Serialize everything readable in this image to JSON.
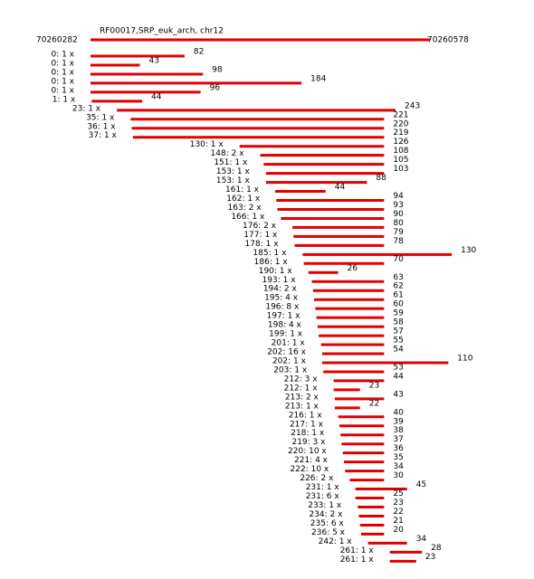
{
  "header": {
    "title": "RF00017,SRP_euk_arch, chr12",
    "start": 70260282,
    "end": 70260578
  },
  "reads": [
    {
      "label": "0: 1 x",
      "start": 0,
      "length": 82
    },
    {
      "label": "0: 1 x",
      "start": 0,
      "length": 43
    },
    {
      "label": "0: 1 x",
      "start": 0,
      "length": 98
    },
    {
      "label": "0: 1 x",
      "start": 0,
      "length": 184
    },
    {
      "label": "0: 1 x",
      "start": 0,
      "length": 96
    },
    {
      "label": "1: 1 x",
      "start": 1,
      "length": 44
    },
    {
      "label": "23: 1 x",
      "start": 23,
      "length": 243
    },
    {
      "label": "35: 1 x",
      "start": 35,
      "length": 221
    },
    {
      "label": "36: 1 x",
      "start": 36,
      "length": 220
    },
    {
      "label": "37: 1 x",
      "start": 37,
      "length": 219
    },
    {
      "label": "130: 1 x",
      "start": 130,
      "length": 126
    },
    {
      "label": "148: 2 x",
      "start": 148,
      "length": 108
    },
    {
      "label": "151: 1 x",
      "start": 151,
      "length": 105
    },
    {
      "label": "153: 1 x",
      "start": 153,
      "length": 103
    },
    {
      "label": "153: 1 x",
      "start": 153,
      "length": 88
    },
    {
      "label": "161: 1 x",
      "start": 161,
      "length": 44
    },
    {
      "label": "162: 1 x",
      "start": 162,
      "length": 94
    },
    {
      "label": "163: 2 x",
      "start": 163,
      "length": 93
    },
    {
      "label": "166: 1 x",
      "start": 166,
      "length": 90
    },
    {
      "label": "176: 2 x",
      "start": 176,
      "length": 80
    },
    {
      "label": "177: 1 x",
      "start": 177,
      "length": 79
    },
    {
      "label": "178: 1 x",
      "start": 178,
      "length": 78
    },
    {
      "label": "185: 1 x",
      "start": 185,
      "length": 130
    },
    {
      "label": "186: 1 x",
      "start": 186,
      "length": 70
    },
    {
      "label": "190: 1 x",
      "start": 190,
      "length": 26
    },
    {
      "label": "193: 1 x",
      "start": 193,
      "length": 63
    },
    {
      "label": "194: 2 x",
      "start": 194,
      "length": 62
    },
    {
      "label": "195: 4 x",
      "start": 195,
      "length": 61
    },
    {
      "label": "196: 8 x",
      "start": 196,
      "length": 60
    },
    {
      "label": "197: 1 x",
      "start": 197,
      "length": 59
    },
    {
      "label": "198: 4 x",
      "start": 198,
      "length": 58
    },
    {
      "label": "199: 1 x",
      "start": 199,
      "length": 57
    },
    {
      "label": "201: 1 x",
      "start": 201,
      "length": 55
    },
    {
      "label": "202: 16 x",
      "start": 202,
      "length": 54
    },
    {
      "label": "202: 1 x",
      "start": 202,
      "length": 110
    },
    {
      "label": "203: 1 x",
      "start": 203,
      "length": 53
    },
    {
      "label": "212: 3 x",
      "start": 212,
      "length": 44
    },
    {
      "label": "212: 1 x",
      "start": 212,
      "length": 23
    },
    {
      "label": "213: 2 x",
      "start": 213,
      "length": 43
    },
    {
      "label": "213: 1 x",
      "start": 213,
      "length": 22
    },
    {
      "label": "216: 1 x",
      "start": 216,
      "length": 40
    },
    {
      "label": "217: 1 x",
      "start": 217,
      "length": 39
    },
    {
      "label": "218: 1 x",
      "start": 218,
      "length": 38
    },
    {
      "label": "219: 3 x",
      "start": 219,
      "length": 37
    },
    {
      "label": "220: 10 x",
      "start": 220,
      "length": 36
    },
    {
      "label": "221: 4 x",
      "start": 221,
      "length": 35
    },
    {
      "label": "222: 10 x",
      "start": 222,
      "length": 34
    },
    {
      "label": "226: 2 x",
      "start": 226,
      "length": 30
    },
    {
      "label": "231: 1 x",
      "start": 231,
      "length": 45
    },
    {
      "label": "231: 6 x",
      "start": 231,
      "length": 25
    },
    {
      "label": "233: 1 x",
      "start": 233,
      "length": 23
    },
    {
      "label": "234: 2 x",
      "start": 234,
      "length": 22
    },
    {
      "label": "235: 6 x",
      "start": 235,
      "length": 21
    },
    {
      "label": "236: 5 x",
      "start": 236,
      "length": 20
    },
    {
      "label": "242: 1 x",
      "start": 242,
      "length": 34
    },
    {
      "label": "261: 1 x",
      "start": 261,
      "length": 28
    },
    {
      "label": "261: 1 x",
      "start": 261,
      "length": 23
    }
  ]
}
